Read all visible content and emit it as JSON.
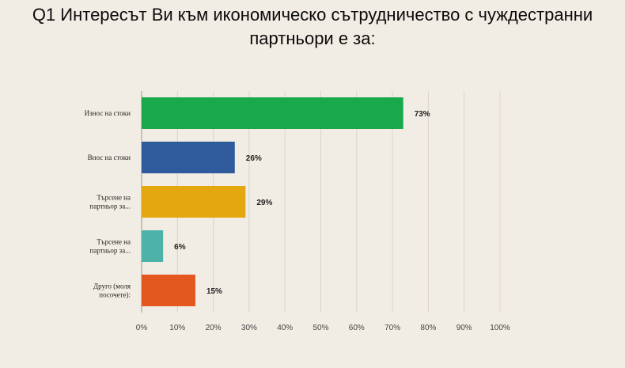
{
  "title": {
    "line1": "Q1 Интересът Ви към икономическо сътрудничество с чуждестранни",
    "line2": "партньори е за:"
  },
  "colors": {
    "background": "#f2ede4",
    "grid": "#d9d4cc",
    "axis": "#9a958e"
  },
  "chart_data": {
    "type": "bar",
    "orientation": "horizontal",
    "categories": [
      [
        "Износ на стоки"
      ],
      [
        "Внос на стоки"
      ],
      [
        "Търсене на",
        "партньор за..."
      ],
      [
        "Търсене на",
        "партньор за..."
      ],
      [
        "Друго (моля",
        "посочете):"
      ]
    ],
    "values": [
      73,
      26,
      29,
      6,
      15
    ],
    "value_labels": [
      "73%",
      "26%",
      "29%",
      "6%",
      "15%"
    ],
    "bar_colors": [
      "#19a94b",
      "#2f5b9d",
      "#e5a70f",
      "#4db3a9",
      "#e3581f"
    ],
    "xlim": [
      0,
      100
    ],
    "xticks": [
      "0%",
      "10%",
      "20%",
      "30%",
      "40%",
      "50%",
      "60%",
      "70%",
      "80%",
      "90%",
      "100%"
    ],
    "grid": true
  }
}
